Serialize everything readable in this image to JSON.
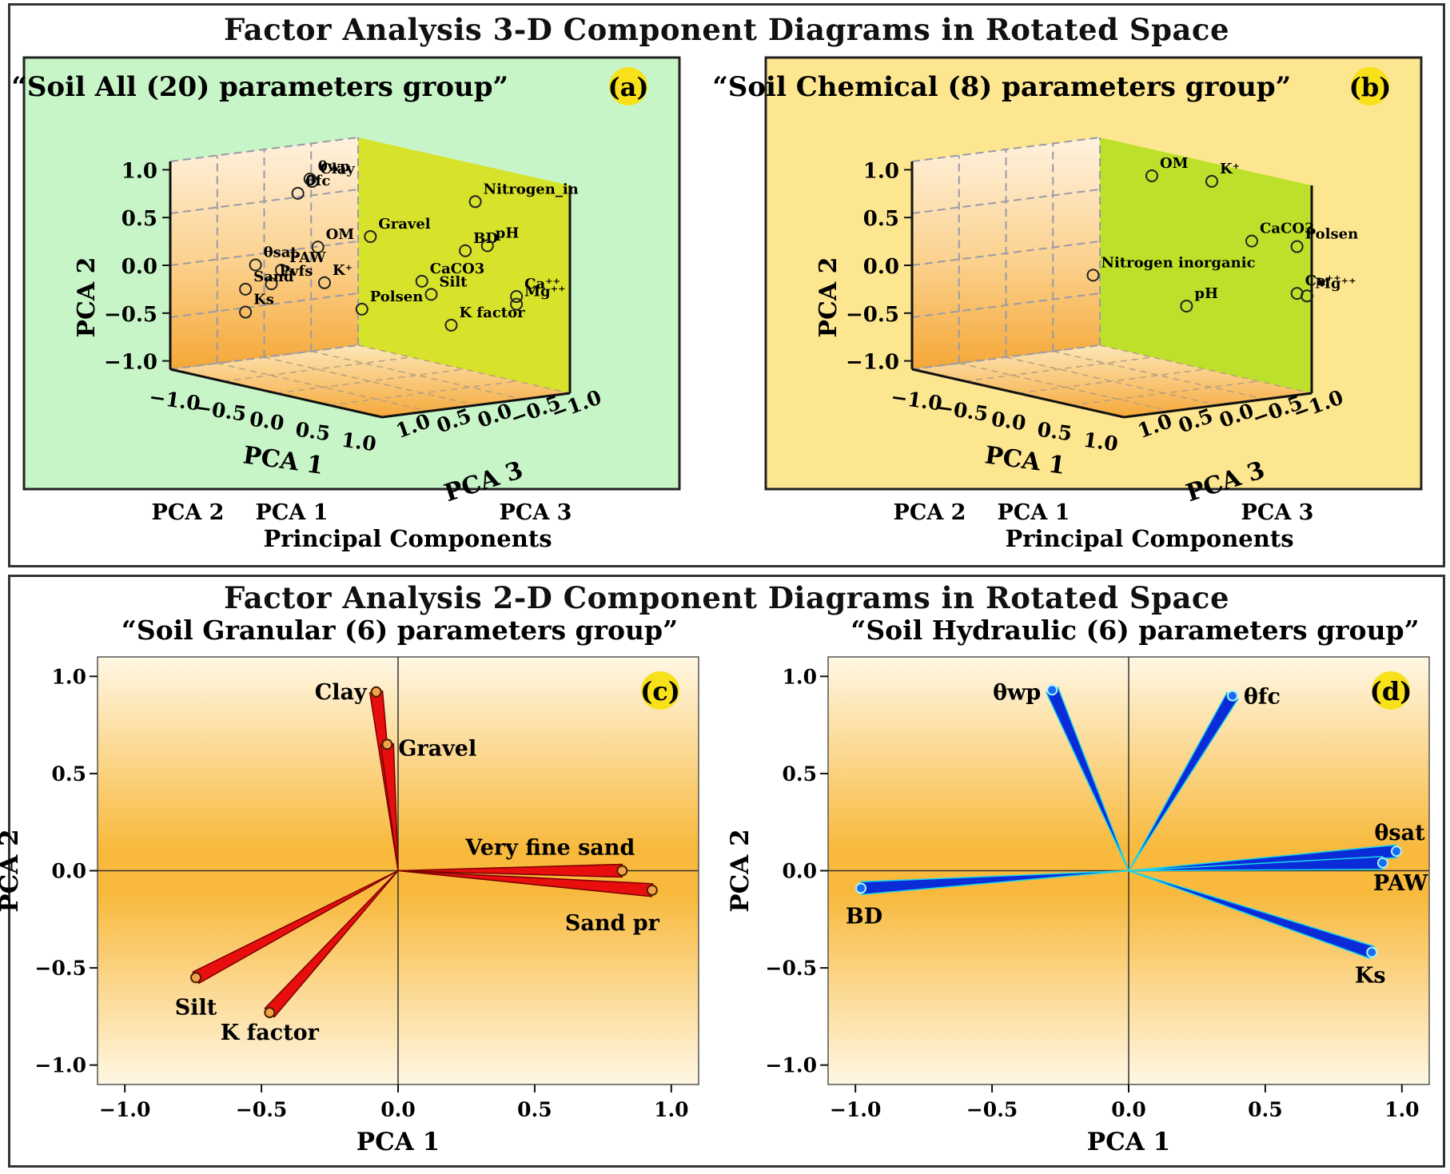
{
  "top_title": "Factor Analysis 3-D Component Diagrams in Rotated Space",
  "bottom_title": "Factor Analysis 2-D Component Diagrams in Rotated Space",
  "colors": {
    "green_bg": "#c8f5c8",
    "yellow_bg": "#fde690",
    "olive_wall": "#d7e22a",
    "lime_wall": "#bde12a",
    "orange_grad": "#f7b23a",
    "red_vector": "#e80e0e",
    "blue_vector": "#0a2bd8",
    "badge_yellow": "#f8e01a"
  },
  "chart_data": [
    {
      "id": "a",
      "type": "scatter3d",
      "badge": "(a)",
      "title": "“Soil  All (20) parameters  group”",
      "xlabel": "PCA 1",
      "ylabel": "PCA 2",
      "zlabel": "PCA 3",
      "xticks": [
        "−1.0",
        "−0.5",
        "0.0",
        "0.5",
        "1.0"
      ],
      "yticks": [
        "1.0",
        "0.5",
        "0.0",
        "−0.5",
        "−1.0"
      ],
      "zticks": [
        "1.0",
        "0.5",
        "0.0",
        "−0.5",
        "−1.0"
      ],
      "axis_order_label": [
        "PCA 2",
        "PCA 1",
        "PCA 3"
      ],
      "axis_caption": "Principal Components",
      "points": [
        {
          "label": "θwp",
          "pca1": -0.08,
          "pca2": 0.99,
          "pca3": 0.55
        },
        {
          "label": "Clay",
          "pca1": -0.06,
          "pca2": 0.97,
          "pca3": 0.55
        },
        {
          "label": "θfc",
          "pca1": -0.15,
          "pca2": 0.83,
          "pca3": 0.6
        },
        {
          "label": "Nitrogen_in",
          "pca1": 0.55,
          "pca2": 0.78,
          "pca3": -0.5
        },
        {
          "label": "Gravel",
          "pca1": 0.18,
          "pca2": 0.41,
          "pca3": 0.2
        },
        {
          "label": "OM",
          "pca1": -0.05,
          "pca2": 0.28,
          "pca3": 0.5
        },
        {
          "label": "BD",
          "pca1": 0.5,
          "pca2": 0.26,
          "pca3": -0.45
        },
        {
          "label": "pH",
          "pca1": 0.62,
          "pca2": 0.33,
          "pca3": -0.55
        },
        {
          "label": "θsat",
          "pca1": -0.55,
          "pca2": -0.02,
          "pca3": 0.6
        },
        {
          "label": "PAW",
          "pca1": -0.35,
          "pca2": -0.03,
          "pca3": 0.55
        },
        {
          "label": "CaCO3",
          "pca1": 0.4,
          "pca2": -0.04,
          "pca3": -0.1
        },
        {
          "label": "Ca⁺⁺",
          "pca1": 0.85,
          "pca2": -0.15,
          "pca3": -0.6
        },
        {
          "label": "Mg⁺⁺",
          "pca1": 0.85,
          "pca2": -0.23,
          "pca3": -0.6
        },
        {
          "label": "K⁺",
          "pca1": -0.12,
          "pca2": -0.13,
          "pca3": 0.35
        },
        {
          "label": "Silt",
          "pca1": 0.4,
          "pca2": -0.19,
          "pca3": -0.2
        },
        {
          "label": "Pvfs",
          "pca1": -0.4,
          "pca2": -0.18,
          "pca3": 0.6
        },
        {
          "label": "Sand",
          "pca1": -0.6,
          "pca2": -0.28,
          "pca3": 0.65
        },
        {
          "label": "Ks",
          "pca1": -0.6,
          "pca2": -0.52,
          "pca3": 0.65
        },
        {
          "label": "Polsen",
          "pca1": 0.1,
          "pca2": -0.37,
          "pca3": 0.2
        },
        {
          "label": "K factor",
          "pca1": 0.5,
          "pca2": -0.5,
          "pca3": -0.3
        }
      ]
    },
    {
      "id": "b",
      "type": "scatter3d",
      "badge": "(b)",
      "title": "“Soil  Chemical (8) parameters  group”",
      "xlabel": "PCA 1",
      "ylabel": "PCA 2",
      "zlabel": "PCA 3",
      "xticks": [
        "−1.0",
        "−0.5",
        "0.0",
        "0.5",
        "1.0"
      ],
      "yticks": [
        "1.0",
        "0.5",
        "0.0",
        "−0.5",
        "−1.0"
      ],
      "zticks": [
        "1.0",
        "0.5",
        "0.0",
        "−0.5",
        "−1.0"
      ],
      "axis_order_label": [
        "PCA 2",
        "PCA 1",
        "PCA 3"
      ],
      "axis_caption": "Principal Components",
      "points": [
        {
          "label": "OM",
          "pca1": 0.2,
          "pca2": 1.0,
          "pca3": -0.2
        },
        {
          "label": "K⁺",
          "pca1": 0.5,
          "pca2": 0.98,
          "pca3": -0.5
        },
        {
          "label": "CaCO3",
          "pca1": 0.7,
          "pca2": 0.38,
          "pca3": -0.7
        },
        {
          "label": "Polsen",
          "pca1": 0.95,
          "pca2": 0.36,
          "pca3": -0.9
        },
        {
          "label": "Nitrogen inorganic",
          "pca1": 0.0,
          "pca2": -0.04,
          "pca3": 0.2
        },
        {
          "label": "Ca⁺⁺",
          "pca1": 0.95,
          "pca2": -0.13,
          "pca3": -0.9
        },
        {
          "label": "Mg⁺⁺",
          "pca1": 1.0,
          "pca2": -0.15,
          "pca3": -0.95
        },
        {
          "label": "pH",
          "pca1": 0.35,
          "pca2": -0.35,
          "pca3": -0.4
        }
      ]
    },
    {
      "id": "c",
      "type": "biplot",
      "badge": "(c)",
      "title": "“Soil  Granular (6) parameters  group”",
      "xlabel": "PCA 1",
      "ylabel": "PCA 2",
      "xlim": [
        -1.1,
        1.1
      ],
      "ylim": [
        -1.1,
        1.1
      ],
      "xticks": [
        -1.0,
        -0.5,
        0.0,
        0.5,
        1.0
      ],
      "yticks": [
        1.0,
        0.5,
        0.0,
        -0.5,
        -1.0
      ],
      "tick_labels_x": [
        "−1.0",
        "−0.5",
        "0.0",
        "0.5",
        "1.0"
      ],
      "tick_labels_y": [
        "1.0",
        "0.5",
        "0.0",
        "−0.5",
        "−1.0"
      ],
      "vectors": [
        {
          "label": "Clay",
          "x": -0.08,
          "y": 0.92
        },
        {
          "label": "Gravel",
          "x": -0.04,
          "y": 0.65
        },
        {
          "label": "Very fine  sand",
          "x": 0.82,
          "y": 0.0
        },
        {
          "label": "Sand pr",
          "x": 0.93,
          "y": -0.1
        },
        {
          "label": "Silt",
          "x": -0.74,
          "y": -0.55
        },
        {
          "label": "K factor",
          "x": -0.47,
          "y": -0.73
        }
      ]
    },
    {
      "id": "d",
      "type": "biplot",
      "badge": "(d)",
      "title": "“Soil  Hydraulic (6) parameters  group”",
      "xlabel": "PCA 1",
      "ylabel": "PCA 2",
      "xlim": [
        -1.1,
        1.1
      ],
      "ylim": [
        -1.1,
        1.1
      ],
      "xticks": [
        -1.0,
        -0.5,
        0.0,
        0.5,
        1.0
      ],
      "yticks": [
        1.0,
        0.5,
        0.0,
        -0.5,
        -1.0
      ],
      "tick_labels_x": [
        "−1.0",
        "−0.5",
        "0.0",
        "0.5",
        "1.0"
      ],
      "tick_labels_y": [
        "1.0",
        "0.5",
        "0.0",
        "−0.5",
        "−1.0"
      ],
      "vectors": [
        {
          "label": "θwp",
          "x": -0.28,
          "y": 0.93
        },
        {
          "label": "θfc",
          "x": 0.38,
          "y": 0.9
        },
        {
          "label": "θsat",
          "x": 0.98,
          "y": 0.1
        },
        {
          "label": "PAW",
          "x": 0.93,
          "y": 0.04
        },
        {
          "label": "BD",
          "x": -0.98,
          "y": -0.09
        },
        {
          "label": "Ks",
          "x": 0.89,
          "y": -0.42
        }
      ]
    }
  ]
}
